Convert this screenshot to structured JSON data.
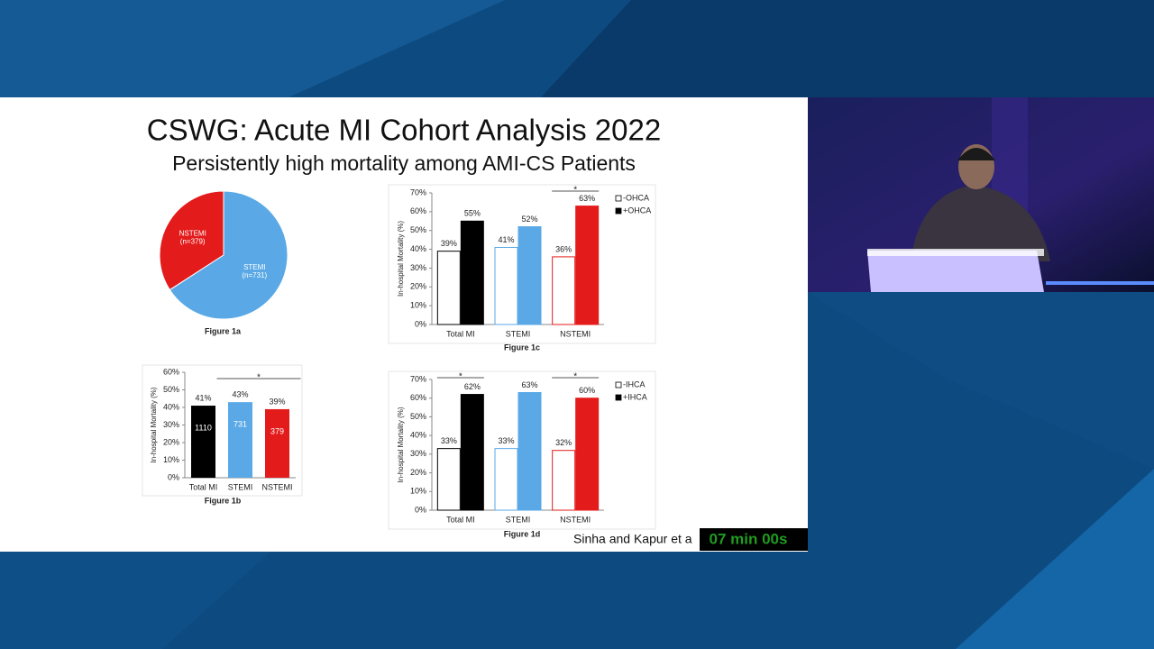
{
  "slide": {
    "title": "CSWG: Acute MI Cohort Analysis 2022",
    "subtitle": "Persistently high mortality among AMI-CS Patients",
    "citation": "Sinha and Kapur et a",
    "timer": "07 min 00s"
  },
  "chart_data": [
    {
      "type": "pie",
      "caption": "Figure 1a",
      "categories": [
        "NSTEMI",
        "STEMI"
      ],
      "values": [
        379,
        731
      ],
      "value_labels": [
        "(n=379)",
        "(n=731)"
      ],
      "colors": [
        "#e41b1b",
        "#5aa9e6"
      ]
    },
    {
      "type": "bar",
      "caption": "Figure 1b",
      "y_label": "In-hospital Mortality (%)",
      "categories": [
        "Total MI",
        "STEMI",
        "NSTEMI"
      ],
      "values": [
        41,
        43,
        39
      ],
      "value_labels": [
        "41%",
        "43%",
        "39%"
      ],
      "counts": [
        1110,
        731,
        379
      ],
      "colors": [
        "#000000",
        "#5aa9e6",
        "#e41b1b"
      ],
      "annotations": [
        "*"
      ],
      "ylim": [
        0,
        60
      ],
      "yticks": [
        {
          "value": 0,
          "label": "0%"
        },
        {
          "value": 10,
          "label": "10%"
        },
        {
          "value": 20,
          "label": "20%"
        },
        {
          "value": 30,
          "label": "30%"
        },
        {
          "value": 40,
          "label": "40%"
        },
        {
          "value": 50,
          "label": "50%"
        },
        {
          "value": 60,
          "label": "60%"
        }
      ]
    },
    {
      "type": "bar",
      "caption": "Figure 1c",
      "y_label": "In-hospital Mortality (%)",
      "categories": [
        "Total MI",
        "STEMI",
        "NSTEMI"
      ],
      "series": [
        {
          "name": "-OHCA",
          "color": "#ffffff",
          "edge_colors": [
            "#000000",
            "#5aa9e6",
            "#e41b1b"
          ],
          "values": [
            39,
            41,
            36
          ],
          "value_labels": [
            "39%",
            "41%",
            "36%"
          ]
        },
        {
          "name": "+OHCA",
          "color": "#000000",
          "colors": [
            "#000000",
            "#5aa9e6",
            "#e41b1b"
          ],
          "values": [
            55,
            52,
            63
          ],
          "value_labels": [
            "55%",
            "52%",
            "63%"
          ]
        }
      ],
      "annotations": [
        "*"
      ],
      "ylim": [
        0,
        70
      ],
      "yticks": [
        {
          "value": 0,
          "label": "0%"
        },
        {
          "value": 10,
          "label": "10%"
        },
        {
          "value": 20,
          "label": "20%"
        },
        {
          "value": 30,
          "label": "30%"
        },
        {
          "value": 40,
          "label": "40%"
        },
        {
          "value": 50,
          "label": "50%"
        },
        {
          "value": 60,
          "label": "60%"
        },
        {
          "value": 70,
          "label": "70%"
        }
      ]
    },
    {
      "type": "bar",
      "caption": "Figure 1d",
      "y_label": "In-hospital Mortality (%)",
      "categories": [
        "Total MI",
        "STEMI",
        "NSTEMI"
      ],
      "series": [
        {
          "name": "-IHCA",
          "color": "#ffffff",
          "edge_colors": [
            "#000000",
            "#5aa9e6",
            "#e41b1b"
          ],
          "values": [
            33,
            33,
            32
          ],
          "value_labels": [
            "33%",
            "33%",
            "32%"
          ]
        },
        {
          "name": "+IHCA",
          "color": "#000000",
          "colors": [
            "#000000",
            "#5aa9e6",
            "#e41b1b"
          ],
          "values": [
            62,
            63,
            60
          ],
          "value_labels": [
            "62%",
            "63%",
            "60%"
          ]
        }
      ],
      "annotations": [
        "*",
        "*"
      ],
      "ylim": [
        0,
        70
      ],
      "yticks": [
        {
          "value": 0,
          "label": "0%"
        },
        {
          "value": 10,
          "label": "10%"
        },
        {
          "value": 20,
          "label": "20%"
        },
        {
          "value": 30,
          "label": "30%"
        },
        {
          "value": 40,
          "label": "40%"
        },
        {
          "value": 50,
          "label": "50%"
        },
        {
          "value": 60,
          "label": "60%"
        },
        {
          "value": 70,
          "label": "70%"
        }
      ]
    }
  ]
}
